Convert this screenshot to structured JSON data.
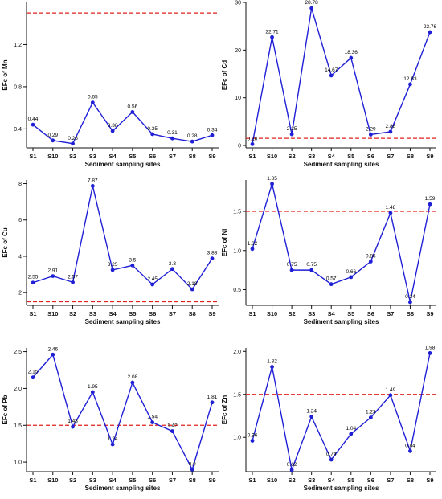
{
  "figure": {
    "colors": {
      "line": "#1f1fd6",
      "point": "#1f1fd6",
      "threshold": "#e0201c",
      "axis": "#111111"
    }
  },
  "chart_data": [
    {
      "type": "line",
      "ylabel": "EFc of Mn",
      "xlabel": "Sediment sampling sites",
      "categories": [
        "S1",
        "S10",
        "S2",
        "S3",
        "S4",
        "S5",
        "S6",
        "S7",
        "S8",
        "S9"
      ],
      "values": [
        0.44,
        0.29,
        0.26,
        0.65,
        0.38,
        0.56,
        0.35,
        0.31,
        0.28,
        0.34
      ],
      "value_labels": [
        "0.44",
        "0.29",
        "0.26",
        "0.65",
        "0.38",
        "0.56",
        "0.35",
        "0.31",
        "0.28",
        "0.34"
      ],
      "ylim": [
        0.22,
        1.6
      ],
      "yticks": [
        0.4,
        0.8,
        1.2
      ],
      "yticks_text": [
        "0.4",
        "0.8",
        "1.2"
      ],
      "threshold": 1.5,
      "grid": false
    },
    {
      "type": "line",
      "ylabel": "EFc of Cd",
      "xlabel": "Sediment sampling sites",
      "categories": [
        "S1",
        "S10",
        "S2",
        "S3",
        "S4",
        "S5",
        "S6",
        "S7",
        "S8",
        "S9"
      ],
      "values": [
        0.28,
        22.71,
        2.35,
        28.78,
        14.67,
        18.36,
        2.29,
        2.88,
        12.83,
        23.76
      ],
      "value_labels": [
        "0.28",
        "22.71",
        "2.35",
        "28.78",
        "14.67",
        "18.36",
        "2.29",
        "2.88",
        "12.83",
        "23.76"
      ],
      "ylim": [
        -0.5,
        30
      ],
      "yticks": [
        0,
        10,
        20,
        30
      ],
      "yticks_text": [
        "0",
        "10",
        "20",
        "30"
      ],
      "threshold": 1.5,
      "grid": false
    },
    {
      "type": "line",
      "ylabel": "EFc of Cu",
      "xlabel": "Sediment sampling sites",
      "categories": [
        "S1",
        "S10",
        "S2",
        "S3",
        "S4",
        "S5",
        "S6",
        "S7",
        "S8",
        "S9"
      ],
      "values": [
        2.55,
        2.91,
        2.57,
        7.87,
        3.25,
        3.5,
        2.45,
        3.3,
        2.18,
        3.88
      ],
      "value_labels": [
        "2.55",
        "2.91",
        "2.57",
        "7.87",
        "3.25",
        "3.5",
        "2.45",
        "3.3",
        "2.18",
        "3.88"
      ],
      "ylim": [
        1.3,
        8.2
      ],
      "yticks": [
        2,
        4,
        6,
        8
      ],
      "yticks_text": [
        "2",
        "4",
        "6",
        "8"
      ],
      "threshold": 1.5,
      "grid": false
    },
    {
      "type": "line",
      "ylabel": "EFc of Ni",
      "xlabel": "Sediment sampling sites",
      "categories": [
        "S1",
        "S10",
        "S2",
        "S3",
        "S4",
        "S5",
        "S6",
        "S7",
        "S8",
        "S9"
      ],
      "values": [
        1.02,
        1.85,
        0.75,
        0.75,
        0.57,
        0.66,
        0.86,
        1.48,
        0.34,
        1.59
      ],
      "value_labels": [
        "1.02",
        "1.85",
        "0.75",
        "0.75",
        "0.57",
        "0.66",
        "0.86",
        "1.48",
        "0.34",
        "1.59"
      ],
      "ylim": [
        0.3,
        1.9
      ],
      "yticks": [
        0.5,
        1.0,
        1.5
      ],
      "yticks_text": [
        "0.5",
        "1.0",
        "1.5"
      ],
      "threshold": 1.5,
      "grid": false
    },
    {
      "type": "line",
      "ylabel": "EFc of Pb",
      "xlabel": "Sediment sampling sites",
      "categories": [
        "S1",
        "S10",
        "S2",
        "S3",
        "S4",
        "S5",
        "S6",
        "S7",
        "S8",
        "S9"
      ],
      "values": [
        2.15,
        2.46,
        1.48,
        1.95,
        1.24,
        2.08,
        1.54,
        1.42,
        0.9,
        1.81
      ],
      "value_labels": [
        "2.15",
        "2.46",
        "1.48",
        "1.95",
        "1.24",
        "2.08",
        "1.54",
        "1.42",
        "0.9",
        "1.81"
      ],
      "ylim": [
        0.87,
        2.55
      ],
      "yticks": [
        1.0,
        1.5,
        2.0,
        2.5
      ],
      "yticks_text": [
        "1.0",
        "1.5",
        "2.0",
        "2.5"
      ],
      "threshold": 1.5,
      "grid": false
    },
    {
      "type": "line",
      "ylabel": "EFc of Zn",
      "xlabel": "Sediment sampling sites",
      "categories": [
        "S1",
        "S10",
        "S2",
        "S3",
        "S4",
        "S5",
        "S6",
        "S7",
        "S8",
        "S9"
      ],
      "values": [
        0.96,
        1.82,
        0.62,
        1.24,
        0.74,
        1.04,
        1.23,
        1.49,
        0.84,
        1.98
      ],
      "value_labels": [
        "0.96",
        "1.82",
        "0.62",
        "1.24",
        "0.74",
        "1.04",
        "1.23",
        "1.49",
        "0.84",
        "1.98"
      ],
      "ylim": [
        0.6,
        2.04
      ],
      "yticks": [
        1.0,
        1.5,
        2.0
      ],
      "yticks_text": [
        "1.0",
        "1.5",
        "2.0"
      ],
      "threshold": 1.5,
      "grid": false
    }
  ]
}
